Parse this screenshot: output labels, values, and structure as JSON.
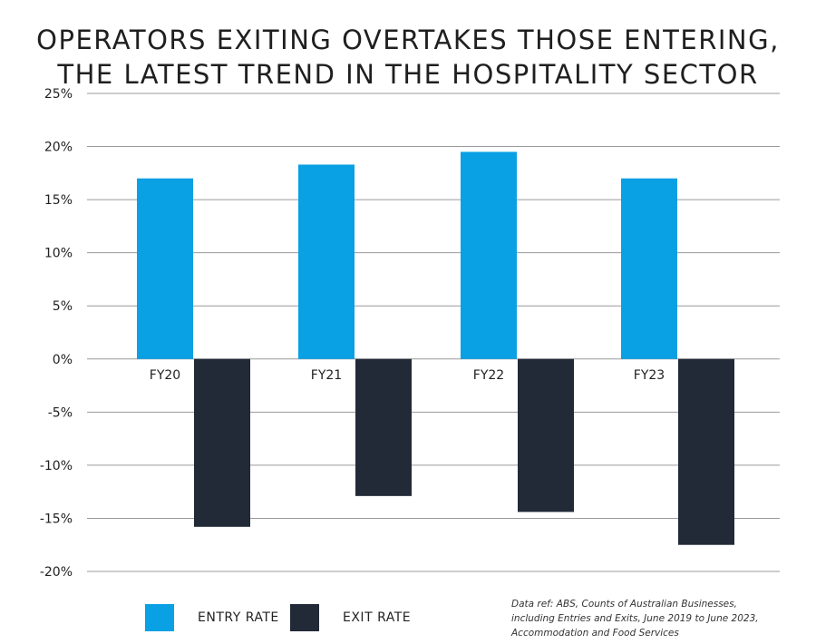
{
  "title": {
    "line1": "OPERATORS EXITING OVERTAKES THOSE ENTERING,",
    "line2": "THE LATEST TREND IN THE HOSPITALITY SECTOR"
  },
  "colors": {
    "entry": "#0aa0e4",
    "exit": "#222a38",
    "grid": "#9a9a9a"
  },
  "chart_data": {
    "type": "bar",
    "categories": [
      "FY20",
      "FY21",
      "FY22",
      "FY23"
    ],
    "series": [
      {
        "name": "ENTRY RATE",
        "values": [
          17.0,
          18.3,
          19.5,
          17.0
        ]
      },
      {
        "name": "EXIT RATE",
        "values": [
          -15.8,
          -12.9,
          -14.4,
          -17.5
        ]
      }
    ],
    "ylim": [
      -20,
      25
    ],
    "yticks": [
      25,
      20,
      15,
      10,
      5,
      0,
      -5,
      -10,
      -15,
      -20
    ],
    "ytick_labels": [
      "25%",
      "20%",
      "15%",
      "10%",
      "5%",
      "0%",
      "-5%",
      "-10%",
      "-15%",
      "-20%"
    ],
    "grid": true,
    "legend_position": "bottom-left"
  },
  "legend": {
    "entry_label": "ENTRY RATE",
    "exit_label": "EXIT RATE"
  },
  "source_note": "Data ref: ABS, Counts of Australian Businesses,\nincluding Entries and Exits, June 2019 to June 2023,\nAccommodation and Food Services"
}
